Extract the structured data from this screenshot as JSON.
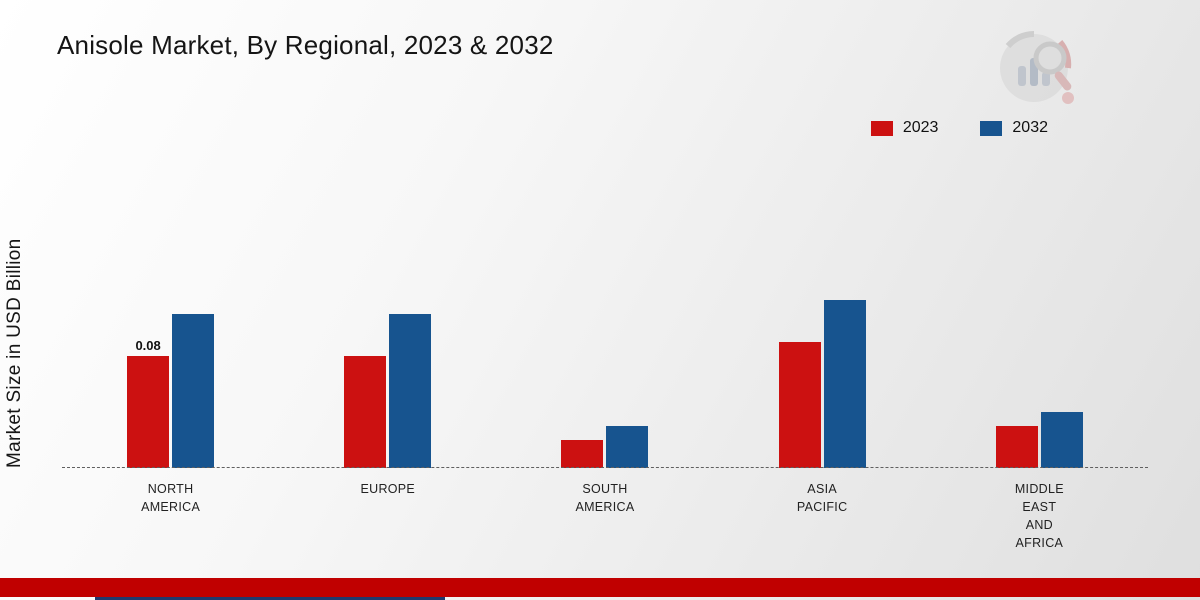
{
  "title": "Anisole Market, By Regional, 2023 & 2032",
  "chart_data": {
    "type": "bar",
    "title": "Anisole Market, By Regional, 2023 & 2032",
    "ylabel": "Market Size in USD Billion",
    "xlabel": "",
    "categories": [
      "NORTH AMERICA",
      "EUROPE",
      "SOUTH AMERICA",
      "ASIA PACIFIC",
      "MIDDLE EAST AND AFRICA"
    ],
    "tick_labels": [
      "NORTH\nAMERICA",
      "EUROPE",
      "SOUTH\nAMERICA",
      "ASIA\nPACIFIC",
      "MIDDLE\nEAST\nAND\nAFRICA"
    ],
    "series": [
      {
        "name": "2023",
        "color": "#cc1111",
        "values": [
          0.08,
          0.08,
          0.02,
          0.09,
          0.03
        ]
      },
      {
        "name": "2032",
        "color": "#17548f",
        "values": [
          0.11,
          0.11,
          0.03,
          0.12,
          0.04
        ]
      }
    ],
    "annotations": [
      {
        "series": "2023",
        "category": "NORTH AMERICA",
        "text": "0.08"
      }
    ],
    "ylim": [
      0,
      0.14
    ],
    "grid": false,
    "legend_position": "top-right",
    "baseline_style": "dashed"
  },
  "legend": {
    "items": [
      {
        "label": "2023",
        "color": "#cc1111"
      },
      {
        "label": "2032",
        "color": "#17548f"
      }
    ]
  },
  "branding": {
    "logo": "market-research-chart-magnifier-logo",
    "footer_red_color": "#c00000",
    "footer_navy_color": "#1f3a6e"
  }
}
